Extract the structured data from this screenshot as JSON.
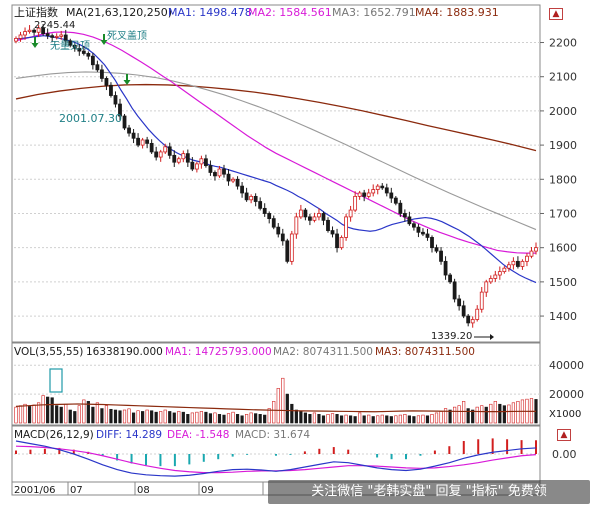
{
  "colors": {
    "price_up": "#d21e1e",
    "price_down": "#1a1a1a",
    "ma1": "#2a36c8",
    "ma2": "#d81ad8",
    "ma3": "#9a9a9a",
    "ma4": "#8b2a0e",
    "teal": "#1f7f86",
    "grid": "#d0d0d0"
  },
  "price_panel": {
    "title": "上证指数",
    "ma_header": "MA(21,63,120,250)",
    "ma1_label": "MA1: 1498.478",
    "ma2_label": "MA2: 1584.561",
    "ma3_label": "MA3: 1652.791",
    "ma4_label": "MA4: 1883.931",
    "high_label": "2245.44",
    "low_label": "1339.20",
    "date_label": "2001.07.30",
    "annotation_1": "无量见顶",
    "annotation_2": "死叉盖顶",
    "arrow_icon": "down-arrow-icon"
  },
  "volume_panel": {
    "header": "VOL(3,55,55)",
    "vol_label": "16338190.000",
    "ma1_label": "MA1: 14725793.000",
    "ma2_label": "MA2: 8074311.500",
    "ma3_label": "MA3: 8074311.500",
    "unit_label": "X1000"
  },
  "macd_panel": {
    "header": "MACD(26,12,9)",
    "diff_label": "DIFF: 14.289",
    "dea_label": "DEA: -1.548",
    "macd_label": "MACD: 31.674"
  },
  "x_axis": {
    "labels": [
      "2001/06",
      "07",
      "08",
      "09"
    ]
  },
  "banner_text": "关注微信 \"老韩实盘\" 回复 \"指标\" 免费领",
  "chart_data": [
    {
      "type": "candlestick",
      "title": "上证指数",
      "y_ticks": [
        1400,
        1500,
        1600,
        1700,
        1800,
        1900,
        2000,
        2100,
        2200
      ],
      "ylim": [
        1330,
        2260
      ],
      "close": [
        2212,
        2222,
        2232,
        2236,
        2230,
        2242,
        2226,
        2220,
        2215,
        2218,
        2222,
        2205,
        2192,
        2183,
        2175,
        2168,
        2160,
        2135,
        2120,
        2095,
        2075,
        2045,
        2020,
        1985,
        1950,
        1935,
        1920,
        1900,
        1915,
        1905,
        1880,
        1865,
        1880,
        1895,
        1870,
        1850,
        1860,
        1875,
        1850,
        1830,
        1845,
        1860,
        1840,
        1820,
        1810,
        1830,
        1815,
        1795,
        1800,
        1780,
        1760,
        1740,
        1750,
        1735,
        1715,
        1700,
        1685,
        1660,
        1640,
        1620,
        1560,
        1640,
        1690,
        1710,
        1690,
        1680,
        1690,
        1700,
        1680,
        1650,
        1640,
        1600,
        1630,
        1690,
        1710,
        1750,
        1760,
        1750,
        1760,
        1770,
        1780,
        1775,
        1760,
        1745,
        1730,
        1700,
        1690,
        1670,
        1660,
        1645,
        1640,
        1630,
        1600,
        1590,
        1560,
        1520,
        1500,
        1450,
        1430,
        1400,
        1380,
        1390,
        1420,
        1470,
        1500,
        1510,
        1520,
        1530,
        1540,
        1550,
        1560,
        1545,
        1560,
        1575,
        1590,
        1600
      ],
      "ma1": [
        2210,
        2212,
        2214,
        2216,
        2218,
        2220,
        2218,
        2215,
        2212,
        2208,
        2204,
        2198,
        2190,
        2180,
        2168,
        2152,
        2135,
        2112,
        2088,
        2060,
        2035,
        2008,
        1985,
        1965,
        1945,
        1928,
        1912,
        1898,
        1888,
        1878,
        1870,
        1862,
        1856,
        1852,
        1848,
        1842,
        1838,
        1835,
        1830,
        1825,
        1820,
        1815,
        1810,
        1805,
        1800,
        1795,
        1790,
        1782,
        1775,
        1768,
        1760,
        1750,
        1742,
        1732,
        1722,
        1712,
        1700,
        1690,
        1680,
        1668,
        1660,
        1655,
        1652,
        1650,
        1648,
        1650,
        1655,
        1662,
        1668,
        1672,
        1676,
        1680,
        1684,
        1686,
        1688,
        1686,
        1682,
        1676,
        1668,
        1660,
        1652,
        1642,
        1632,
        1620,
        1608,
        1594,
        1580,
        1566,
        1552,
        1540,
        1530,
        1520,
        1512,
        1505,
        1498
      ],
      "ma2": [
        2205,
        2212,
        2219,
        2226,
        2230,
        2231,
        2229,
        2224,
        2216,
        2205,
        2192,
        2177,
        2160,
        2143,
        2125,
        2106,
        2088,
        2068,
        2048,
        2028,
        2008,
        1988,
        1968,
        1948,
        1928,
        1910,
        1892,
        1876,
        1862,
        1848,
        1834,
        1820,
        1806,
        1792,
        1778,
        1764,
        1750,
        1736,
        1722,
        1708,
        1694,
        1680,
        1668,
        1656,
        1645,
        1635,
        1625,
        1616,
        1608,
        1600,
        1592,
        1588,
        1585,
        1584,
        1584
      ],
      "ma3": [
        2095,
        2102,
        2108,
        2112,
        2114,
        2113,
        2110,
        2105,
        2098,
        2088,
        2076,
        2062,
        2047,
        2030,
        2012,
        1992,
        1970,
        1948,
        1925,
        1902,
        1878,
        1854,
        1830,
        1806,
        1783,
        1760,
        1738,
        1716,
        1695,
        1674,
        1653
      ],
      "ma4": [
        2035,
        2048,
        2058,
        2066,
        2072,
        2076,
        2077,
        2076,
        2073,
        2068,
        2062,
        2055,
        2046,
        2036,
        2025,
        2013,
        2000,
        1986,
        1972,
        1957,
        1943,
        1929,
        1915,
        1900,
        1884
      ],
      "annotations": [
        "2245.44",
        "1339.20",
        "2001.07.30",
        "无量见顶",
        "死叉盖顶"
      ]
    },
    {
      "type": "bar",
      "title": "VOL(3,55,55)",
      "unit": "X1000",
      "y_ticks": [
        20000,
        40000
      ],
      "ylim": [
        0,
        45000
      ],
      "volume": [
        11000,
        12000,
        13000,
        11500,
        12500,
        14000,
        19000,
        18000,
        17500,
        12000,
        11000,
        13000,
        9000,
        8000,
        12000,
        16000,
        15000,
        11000,
        14000,
        10000,
        12000,
        9500,
        9000,
        8500,
        9000,
        9800,
        7000,
        8500,
        8000,
        9000,
        8500,
        7500,
        8000,
        9000,
        8000,
        7000,
        8000,
        7500,
        6000,
        7000,
        7500,
        8000,
        7500,
        6500,
        7000,
        6000,
        5500,
        6500,
        7500,
        6000,
        5000,
        6000,
        7000,
        6500,
        6000,
        5500,
        10000,
        15000,
        24000,
        31000,
        20000,
        13000,
        9000,
        8000,
        7000,
        6000,
        7000,
        6000,
        5000,
        6000,
        6500,
        6000,
        5000,
        5500,
        5000,
        4500,
        7000,
        5000,
        5500,
        4500,
        5000,
        5500,
        5000,
        4500,
        5000,
        5500,
        6000,
        5000,
        4500,
        5000,
        5500,
        5000,
        6000,
        7000,
        8000,
        10000,
        9000,
        11000,
        12000,
        15000,
        10000,
        9000,
        11000,
        12000,
        11000,
        13000,
        15000,
        13000,
        12000,
        12500,
        14000,
        15000,
        16000,
        16500,
        17000,
        16338
      ],
      "vol_ma": [
        11500,
        12000,
        12500,
        12800,
        13000,
        13200,
        13000,
        12800,
        12500,
        12200,
        11900,
        11600,
        11300,
        11000,
        10700,
        10400,
        10100,
        9800,
        9500,
        9200,
        9000,
        8800,
        8600,
        8400,
        8300,
        8200,
        8100,
        8000,
        7900,
        7800,
        8000,
        8200,
        8400,
        8300,
        8200,
        8100,
        8000,
        8000,
        7900,
        7900,
        8000,
        8100,
        8074
      ]
    },
    {
      "type": "line",
      "title": "MACD(26,12,9)",
      "y_ticks": [
        0.0
      ],
      "ylim": [
        -60,
        30
      ],
      "diff": [
        30,
        24,
        18,
        10,
        0,
        -12,
        -25,
        -36,
        -44,
        -48,
        -50,
        -51,
        -49,
        -45,
        -40,
        -36,
        -35,
        -37,
        -40,
        -36,
        -30,
        -24,
        -18,
        -20,
        -26,
        -32,
        -36,
        -38,
        -35,
        -28,
        -20,
        -10,
        -2,
        4,
        8,
        12,
        14
      ],
      "dea": [
        18,
        17,
        15,
        12,
        8,
        3,
        -4,
        -12,
        -20,
        -27,
        -33,
        -38,
        -41,
        -43,
        -43,
        -42,
        -40,
        -39,
        -39,
        -38,
        -36,
        -33,
        -30,
        -27,
        -27,
        -28,
        -30,
        -32,
        -33,
        -32,
        -29,
        -25,
        -20,
        -14,
        -9,
        -4,
        -1.5
      ],
      "macd": [
        8,
        10,
        12,
        14,
        10,
        5,
        -4,
        -15,
        -22,
        -26,
        -28,
        -28,
        -24,
        -18,
        -12,
        -6,
        -2,
        0,
        -4,
        -2,
        6,
        12,
        16,
        10,
        0,
        -8,
        -12,
        -12,
        -4,
        8,
        18,
        30,
        34,
        36,
        34,
        32,
        31.7
      ]
    }
  ]
}
